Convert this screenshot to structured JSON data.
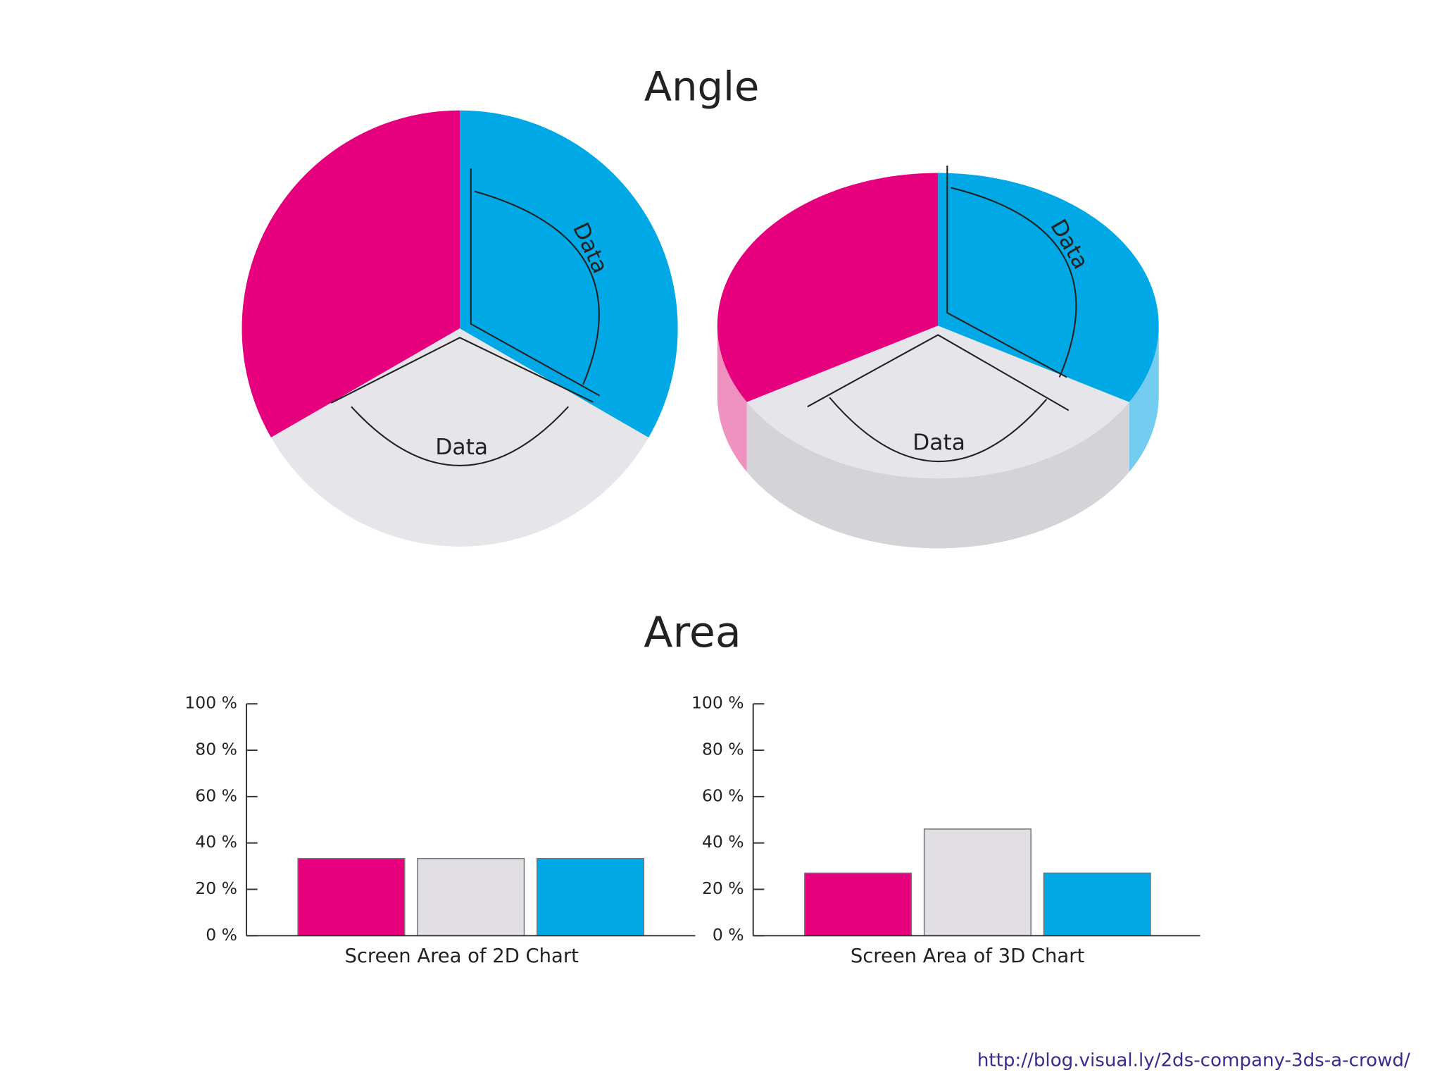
{
  "titles": {
    "angle": "Angle",
    "area": "Area"
  },
  "source": "http://blog.visual.ly/2ds-company-3ds-a-crowd/",
  "chart_data": [
    {
      "type": "pie",
      "values": [
        33.3,
        33.3,
        33.3
      ],
      "colors": [
        "#e6007e",
        "#e6e6ea",
        "#00a8e6"
      ],
      "annotations": [
        "Data",
        "Data"
      ]
    },
    {
      "type": "pie3d",
      "values": [
        33.3,
        33.3,
        33.3
      ],
      "colors": [
        "#e6007e",
        "#e6e6ea",
        "#00a8e6"
      ],
      "side_colors": [
        "#ef92c0",
        "#d4d4d8",
        "#74cdf0"
      ],
      "annotations": [
        "Data",
        "Data"
      ]
    },
    {
      "type": "bar",
      "values": [
        33.3,
        33.3,
        33.3
      ],
      "colors": [
        "#e6007e",
        "#e1dfe3",
        "#00a8e6"
      ],
      "xlabel": "Screen Area of 2D Chart",
      "ylim": [
        0,
        100
      ],
      "yticks": [
        {
          "value": 0,
          "label": "0 %"
        },
        {
          "value": 20,
          "label": "20 %"
        },
        {
          "value": 40,
          "label": "40 %"
        },
        {
          "value": 60,
          "label": "60 %"
        },
        {
          "value": 80,
          "label": "80 %"
        },
        {
          "value": 100,
          "label": "100 %"
        }
      ]
    },
    {
      "type": "bar",
      "values": [
        27,
        46,
        27
      ],
      "colors": [
        "#e6007e",
        "#e1dfe3",
        "#00a8e6"
      ],
      "xlabel": "Screen Area of 3D Chart",
      "ylim": [
        0,
        100
      ],
      "yticks": [
        {
          "value": 0,
          "label": "0 %"
        },
        {
          "value": 20,
          "label": "20 %"
        },
        {
          "value": 40,
          "label": "40 %"
        },
        {
          "value": 60,
          "label": "60 %"
        },
        {
          "value": 80,
          "label": "80 %"
        },
        {
          "value": 100,
          "label": "100 %"
        }
      ]
    }
  ]
}
